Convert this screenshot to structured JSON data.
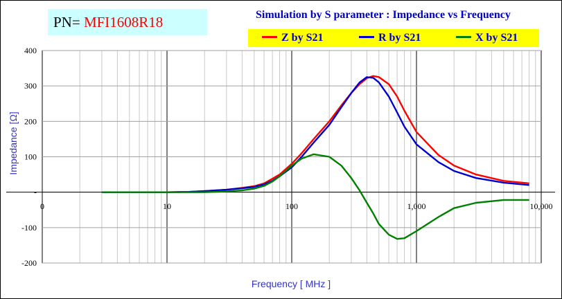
{
  "pn": {
    "prefix": "PN=",
    "value": "MFI1608R18"
  },
  "chart_data": {
    "type": "line",
    "title": "Simulation by S parameter : Impedance vs Frequency",
    "xlabel": "Frequency [ MHz ]",
    "ylabel": "Impedance [Ω]",
    "xscale": "log",
    "xlim": [
      1,
      10000
    ],
    "ylim": [
      -200,
      400
    ],
    "x_tick_labels": [
      "0",
      "10",
      "100",
      "1,000",
      "10,000"
    ],
    "x_tick_values": [
      1,
      10,
      100,
      1000,
      10000
    ],
    "y_ticks": [
      -200,
      -100,
      0,
      100,
      200,
      300,
      400
    ],
    "y_tick_labels": [
      "-200",
      "-100",
      "-",
      "100",
      "200",
      "300",
      "400"
    ],
    "grid": true,
    "legend_position": "top-right",
    "series": [
      {
        "name": "Z by S21",
        "color": "#ff0000",
        "x": [
          3,
          10,
          15,
          20,
          30,
          40,
          50,
          60,
          70,
          80,
          100,
          120,
          150,
          200,
          250,
          300,
          350,
          400,
          450,
          500,
          600,
          700,
          800,
          1000,
          1500,
          2000,
          3000,
          5000,
          8000
        ],
        "y": [
          0,
          0,
          1,
          3,
          7,
          12,
          17,
          25,
          38,
          50,
          80,
          110,
          150,
          200,
          245,
          280,
          305,
          322,
          328,
          325,
          305,
          270,
          230,
          170,
          105,
          75,
          50,
          32,
          25
        ]
      },
      {
        "name": "R by S21",
        "color": "#0000cc",
        "x": [
          3,
          10,
          15,
          20,
          30,
          40,
          50,
          60,
          70,
          80,
          100,
          120,
          150,
          200,
          250,
          300,
          350,
          400,
          450,
          500,
          600,
          700,
          800,
          1000,
          1500,
          2000,
          3000,
          5000,
          8000
        ],
        "y": [
          0,
          0,
          1,
          3,
          7,
          11,
          15,
          22,
          32,
          45,
          70,
          100,
          140,
          190,
          240,
          280,
          310,
          325,
          323,
          310,
          270,
          225,
          185,
          135,
          85,
          60,
          40,
          27,
          20
        ]
      },
      {
        "name": "X by S21",
        "color": "#008000",
        "x": [
          3,
          10,
          15,
          20,
          30,
          40,
          50,
          60,
          70,
          80,
          100,
          120,
          150,
          200,
          250,
          300,
          350,
          400,
          450,
          500,
          600,
          700,
          800,
          1000,
          1500,
          2000,
          3000,
          5000,
          8000
        ],
        "y": [
          0,
          0,
          0,
          0,
          2,
          5,
          10,
          18,
          30,
          45,
          75,
          95,
          107,
          100,
          75,
          40,
          5,
          -30,
          -60,
          -90,
          -120,
          -132,
          -130,
          -110,
          -70,
          -45,
          -30,
          -22,
          -22
        ]
      }
    ]
  }
}
